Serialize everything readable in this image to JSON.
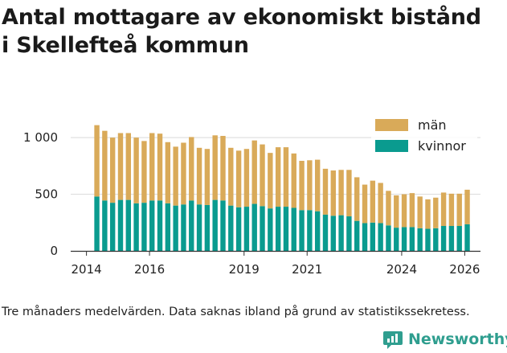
{
  "title_lines": [
    "Antal mottagare av ekonomiskt bistånd",
    "i Skellefteå kommun"
  ],
  "footnote": "Tre månaders medelvärden. Data saknas ibland på grund av statistikssekretess.",
  "logo": {
    "text": "Newsworthy",
    "color": "#2f9e8f"
  },
  "colors": {
    "man": "#d9aa59",
    "kvinnor": "#0a9b8f",
    "grid": "#d9d9d9",
    "axis": "#333333"
  },
  "chart_data": {
    "type": "bar",
    "stacked": true,
    "title": "Antal mottagare av ekonomiskt bistånd i Skellefteå kommun",
    "ylim": [
      0,
      1150
    ],
    "yticks": [
      0,
      500,
      1000
    ],
    "ytick_labels": [
      "0",
      "500",
      "1 000"
    ],
    "xlim": [
      2013.5,
      2026.5
    ],
    "xticks": [
      2014,
      2016,
      2019,
      2021,
      2024,
      2026
    ],
    "xtick_labels": [
      "2014",
      "2016",
      "2019",
      "2021",
      "2024",
      "2026"
    ],
    "legend": [
      "män",
      "kvinnor"
    ],
    "legend_position": "top-right",
    "x": [
      2014.33,
      2014.58,
      2014.83,
      2015.08,
      2015.33,
      2015.58,
      2015.83,
      2016.08,
      2016.33,
      2016.58,
      2016.83,
      2017.08,
      2017.33,
      2017.58,
      2017.83,
      2018.08,
      2018.33,
      2018.58,
      2018.83,
      2019.08,
      2019.33,
      2019.58,
      2019.83,
      2020.08,
      2020.33,
      2020.58,
      2020.83,
      2021.08,
      2021.33,
      2021.58,
      2021.83,
      2022.08,
      2022.33,
      2022.58,
      2022.83,
      2023.08,
      2023.33,
      2023.58,
      2023.83,
      2024.08,
      2024.33,
      2024.58,
      2024.83,
      2025.08,
      2025.33,
      2025.58,
      2025.83,
      2026.08
    ],
    "series": [
      {
        "name": "kvinnor",
        "values": [
          480,
          445,
          425,
          450,
          450,
          420,
          425,
          445,
          445,
          420,
          400,
          410,
          445,
          410,
          405,
          450,
          445,
          400,
          385,
          390,
          415,
          395,
          375,
          390,
          390,
          380,
          360,
          360,
          350,
          320,
          310,
          315,
          305,
          265,
          245,
          250,
          245,
          225,
          205,
          210,
          210,
          200,
          195,
          200,
          220,
          220,
          220,
          235
        ]
      },
      {
        "name": "män",
        "values": [
          630,
          615,
          575,
          590,
          590,
          580,
          545,
          595,
          590,
          540,
          520,
          545,
          560,
          500,
          495,
          570,
          570,
          510,
          500,
          510,
          560,
          545,
          490,
          525,
          525,
          480,
          435,
          440,
          455,
          405,
          400,
          400,
          410,
          385,
          340,
          370,
          355,
          305,
          285,
          290,
          300,
          280,
          260,
          270,
          295,
          285,
          285,
          305
        ]
      }
    ]
  }
}
